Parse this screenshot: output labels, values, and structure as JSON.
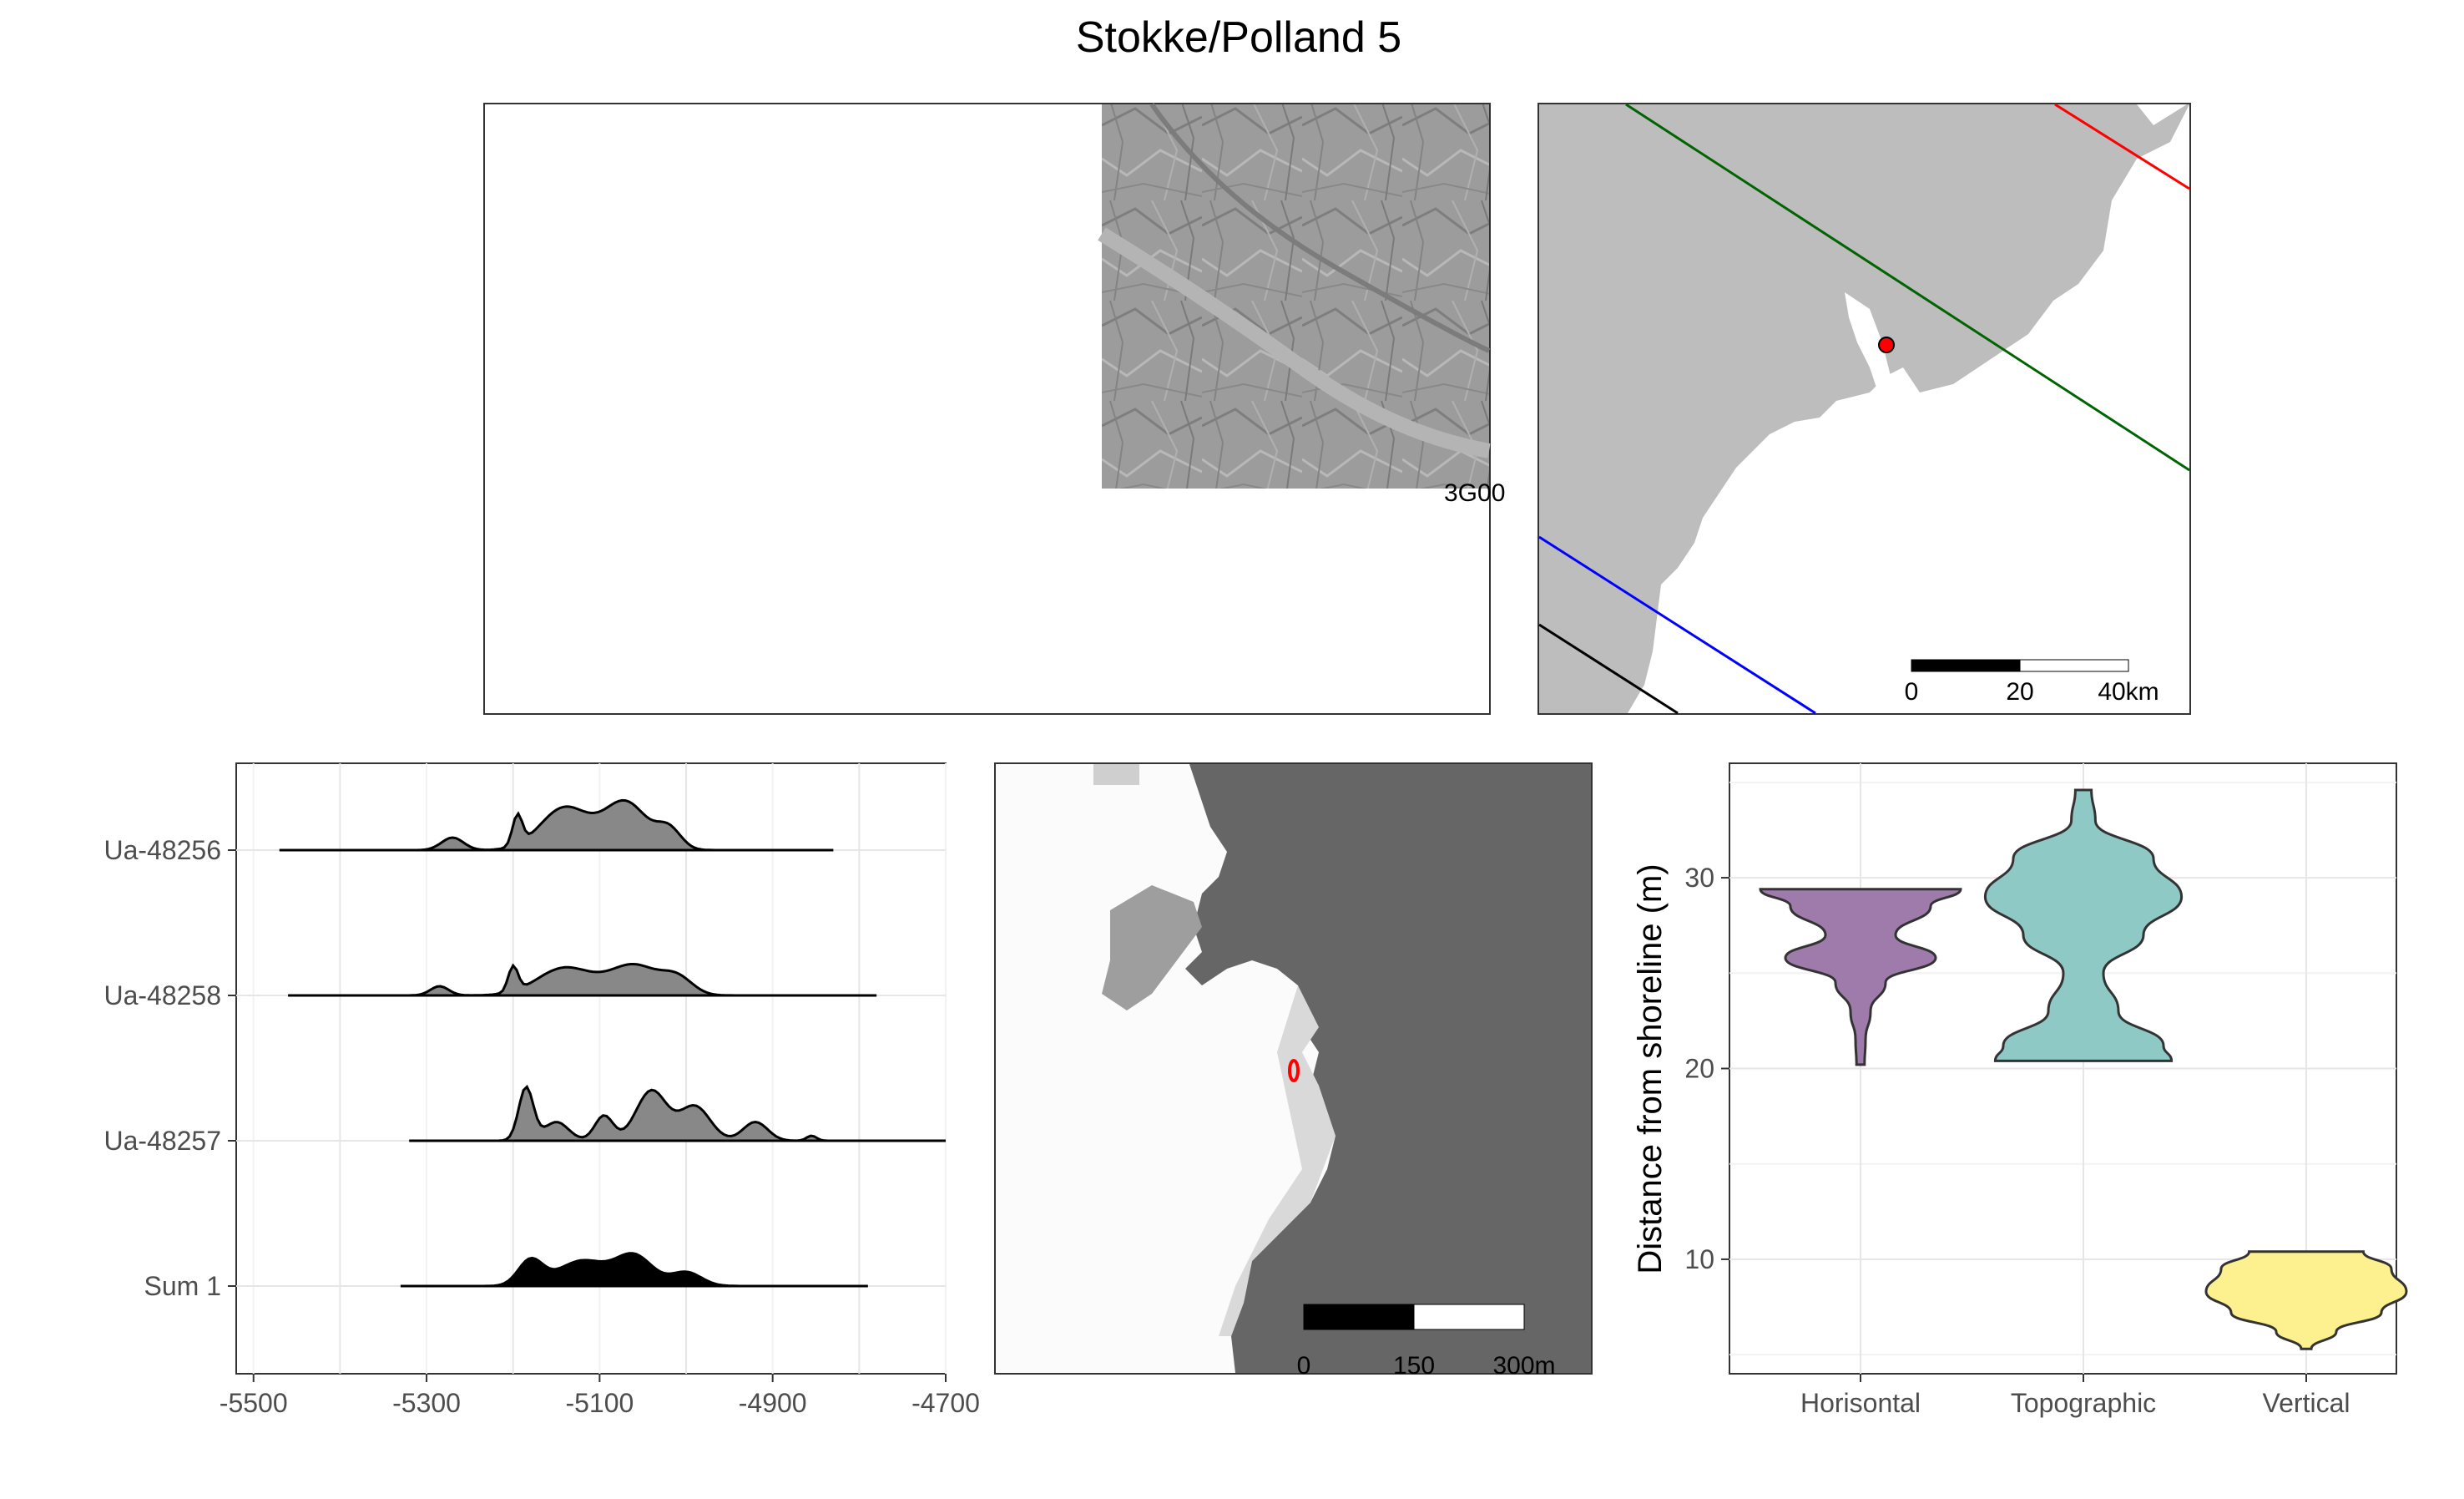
{
  "title": "Stokke/Polland 5",
  "colors": {
    "hillshade": "#9a9a9a",
    "land": "#bdbdbd",
    "shore_dark": "#666666",
    "site_point": "#ff0000",
    "line_green": "#006400",
    "line_red": "#ff0000",
    "line_blue": "#0000ff",
    "line_black": "#000000",
    "violin_horisontal": "#9e7bab",
    "violin_topographic": "#8ec9c5",
    "violin_vertical": "#fdf08e"
  },
  "overview_map": {
    "scale_bar": {
      "labels": [
        "0",
        "20",
        "40km"
      ]
    }
  },
  "hillshade_map": {
    "corner_label": "3G00"
  },
  "site_map": {
    "scale_bar": {
      "labels": [
        "0",
        "150",
        "300m"
      ]
    }
  },
  "chart_data": [
    {
      "type": "area",
      "subtype": "ridgeline-density",
      "xlim": [
        -5520,
        -4700
      ],
      "xticks": [
        -5500,
        -5300,
        -5100,
        -4900,
        -4700
      ],
      "series": [
        {
          "name": "Ua-48256",
          "range": [
            -5470,
            -4830
          ],
          "fill": "#888888"
        },
        {
          "name": "Ua-48258",
          "range": [
            -5460,
            -4780
          ],
          "fill": "#888888"
        },
        {
          "name": "Ua-48257",
          "range": [
            -5320,
            -4700
          ],
          "fill": "#888888"
        },
        {
          "name": "Sum 1",
          "range": [
            -5330,
            -4790
          ],
          "fill": "#000000"
        }
      ]
    },
    {
      "type": "violin",
      "ylabel": "Distance from shoreline (m)",
      "ylim": [
        4,
        36
      ],
      "yticks": [
        10,
        20,
        30
      ],
      "categories": [
        "Horisontal",
        "Topographic",
        "Vertical"
      ],
      "series": [
        {
          "category": "Horisontal",
          "range": [
            20.2,
            29.4
          ]
        },
        {
          "category": "Topographic",
          "range": [
            20.4,
            34.6
          ]
        },
        {
          "category": "Vertical",
          "range": [
            5.3,
            10.4
          ]
        }
      ]
    }
  ]
}
